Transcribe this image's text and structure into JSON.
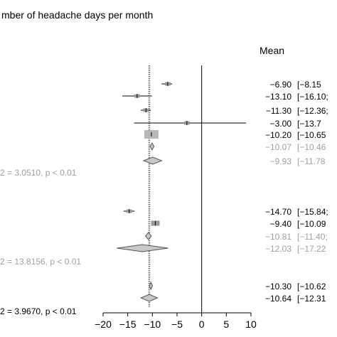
{
  "chart_data": {
    "type": "forest",
    "title": "mber of headache days per month",
    "mean_header": "Mean",
    "xlim": [
      -20,
      10
    ],
    "ticks": [
      -20,
      -15,
      -10,
      -5,
      0,
      5,
      10
    ],
    "reference_line": 0,
    "pooled_line": -10.64,
    "rows": [
      {
        "kind": "study",
        "mean": -6.9,
        "lo": -8.15,
        "hi": -6.0,
        "weight": "small",
        "color": "#000000",
        "label": "−6.90",
        "ci": "[−8.15"
      },
      {
        "kind": "study",
        "mean": -13.1,
        "lo": -16.1,
        "hi": -10.1,
        "weight": "small",
        "color": "#000000",
        "label": "−13.10",
        "ci": "[−16.10;"
      },
      {
        "kind": "study",
        "mean": -11.3,
        "lo": -12.36,
        "hi": -10.3,
        "weight": "small",
        "color": "#000000",
        "label": "−11.30",
        "ci": "[−12.36;"
      },
      {
        "kind": "study",
        "mean": -3.0,
        "lo": -13.7,
        "hi": 9.0,
        "weight": "small",
        "color": "#000000",
        "label": "−3.00",
        "ci": "[−13.7"
      },
      {
        "kind": "study",
        "mean": -10.2,
        "lo": -10.65,
        "hi": -9.75,
        "weight": "large",
        "color": "#000000",
        "label": "−10.20",
        "ci": "[−10.65"
      },
      {
        "kind": "fixed",
        "mean": -10.07,
        "lo": -10.46,
        "hi": -9.68,
        "color": "#a0a0a0",
        "label": "−10.07",
        "ci": "[−10.46"
      },
      {
        "kind": "random",
        "mean": -9.93,
        "lo": -11.78,
        "hi": -8.1,
        "color": "#a0a0a0",
        "label": "−9.93",
        "ci": "[−11.78"
      },
      {
        "kind": "stat",
        "text": "2 = 3.0510, p < 0.01",
        "color": "#a0a0a0"
      },
      {
        "kind": "gap"
      },
      {
        "kind": "study",
        "mean": -14.7,
        "lo": -15.84,
        "hi": -13.6,
        "weight": "small",
        "color": "#000000",
        "label": "−14.70",
        "ci": "[−15.84;"
      },
      {
        "kind": "study",
        "mean": -9.4,
        "lo": -10.09,
        "hi": -8.7,
        "weight": "medium",
        "color": "#000000",
        "label": "−9.40",
        "ci": "[−10.09"
      },
      {
        "kind": "fixed",
        "mean": -10.81,
        "lo": -11.4,
        "hi": -10.2,
        "color": "#a0a0a0",
        "label": "−10.81",
        "ci": "[−11.40;"
      },
      {
        "kind": "random",
        "mean": -12.03,
        "lo": -17.22,
        "hi": -6.8,
        "color": "#a0a0a0",
        "label": "−12.03",
        "ci": "[−17.22"
      },
      {
        "kind": "stat",
        "text": "2 = 13.8156, p < 0.01",
        "color": "#a0a0a0"
      },
      {
        "kind": "gap"
      },
      {
        "kind": "fixed",
        "mean": -10.3,
        "lo": -10.62,
        "hi": -9.98,
        "color": "#000000",
        "label": "−10.30",
        "ci": "[−10.62"
      },
      {
        "kind": "random",
        "mean": -10.64,
        "lo": -12.31,
        "hi": -8.97,
        "color": "#000000",
        "label": "−10.64",
        "ci": "[−12.31"
      },
      {
        "kind": "stat",
        "text": "2 = 3.9670, p < 0.01",
        "color": "#000000"
      }
    ]
  }
}
